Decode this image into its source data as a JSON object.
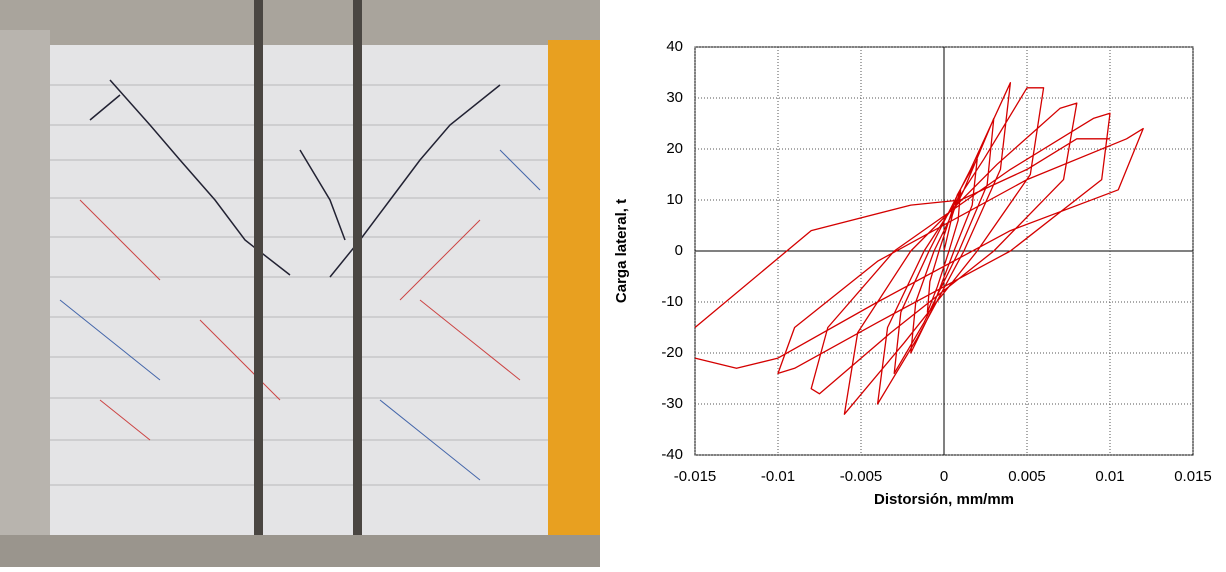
{
  "chart_data": {
    "type": "line",
    "xlabel": "Distorsión, mm/mm",
    "ylabel": "Carga lateral, t",
    "x": [
      0,
      0.0005,
      0.001,
      0.00085,
      0.0003,
      -0.0004,
      -0.001,
      -0.00085,
      -0.0003,
      0.0008,
      0.002,
      0.0017,
      0.0006,
      -0.0008,
      -0.002,
      -0.0017,
      -0.0006,
      0.0012,
      0.003,
      0.0026,
      0.0009,
      -0.0012,
      -0.003,
      -0.0026,
      -0.0009,
      0.0016,
      0.004,
      0.0034,
      0.0012,
      -0.0016,
      -0.004,
      -0.0034,
      -0.0012,
      0.0024,
      0.005,
      0.006,
      0.0052,
      0.002,
      -0.0024,
      -0.006,
      -0.0052,
      -0.002,
      0.0032,
      0.007,
      0.008,
      0.0072,
      0.003,
      -0.0032,
      -0.0075,
      -0.008,
      -0.007,
      -0.003,
      0.004,
      0.009,
      0.01,
      0.0095,
      0.004,
      -0.004,
      -0.009,
      -0.01,
      -0.009,
      -0.004,
      0.005,
      0.011,
      0.012,
      0.0105,
      0.004,
      -0.004,
      -0.01,
      -0.0125,
      -0.015,
      null,
      -0.015,
      -0.008,
      -0.002,
      0.001,
      0.005,
      0.008,
      0.01
    ],
    "series": [
      {
        "color": "#d40000",
        "values": [
          0,
          7,
          12,
          6,
          0,
          -7,
          -12,
          -6,
          0,
          11,
          18,
          9,
          0,
          -12,
          -20,
          -10,
          0,
          12,
          26,
          13,
          0,
          -14,
          -24,
          -12,
          0,
          16,
          33,
          16,
          0,
          -17,
          -30,
          -15,
          0,
          18,
          32,
          32,
          15,
          0,
          -18,
          -32,
          -16,
          0,
          17,
          28,
          29,
          14,
          0,
          -16,
          -28,
          -27,
          -15,
          0,
          16,
          26,
          27,
          14,
          0,
          -14,
          -23,
          -24,
          -15,
          -2,
          14,
          22,
          24,
          12,
          4,
          -10,
          -21,
          -23,
          -21,
          null,
          -15,
          4,
          9,
          10,
          16,
          22,
          22
        ]
      }
    ],
    "xlim": [
      -0.015,
      0.015
    ],
    "xticks": [
      -0.015,
      -0.01,
      -0.005,
      0,
      0.005,
      0.01,
      0.015
    ],
    "ylim": [
      -40,
      40
    ],
    "yticks": [
      -40,
      -30,
      -20,
      -10,
      0,
      10,
      20,
      30,
      40
    ],
    "grid": true
  }
}
